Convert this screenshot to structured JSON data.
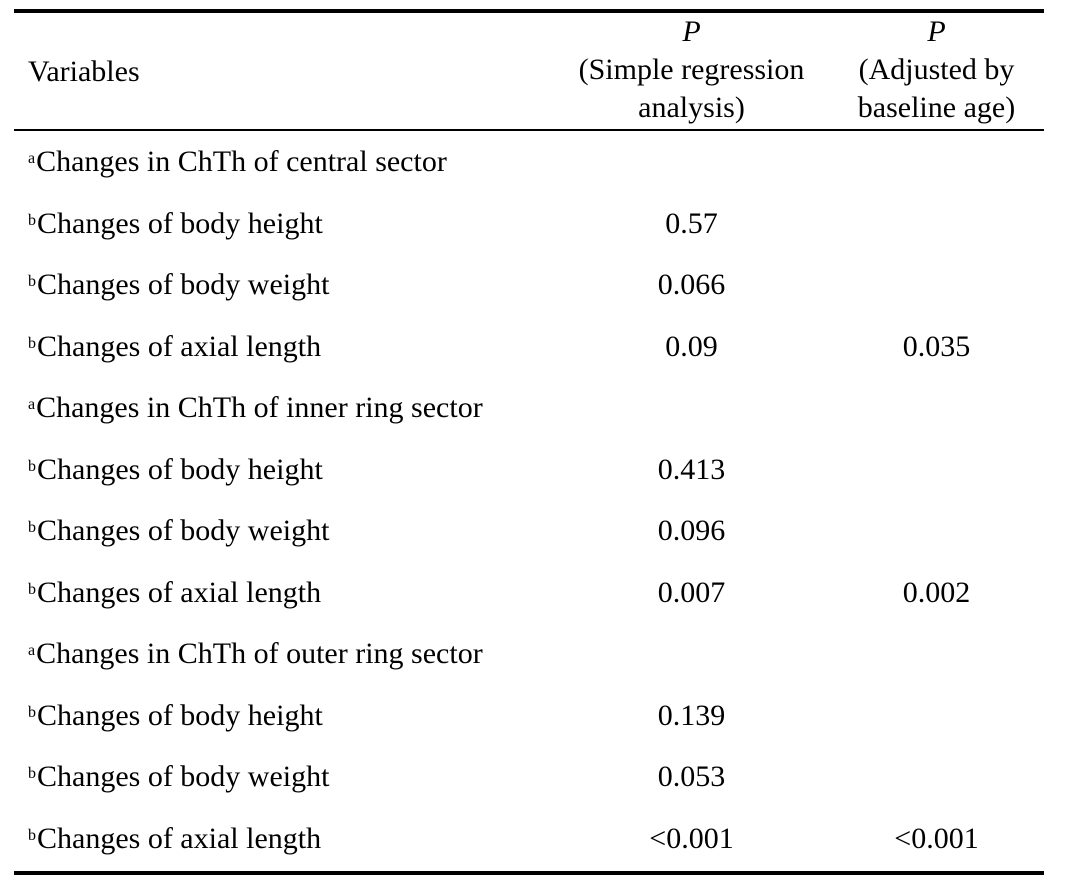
{
  "header": {
    "variables": "Variables",
    "col1": {
      "p": "P",
      "sub": "(Simple regression",
      "sub2": "analysis)"
    },
    "col2": {
      "p": "P",
      "sub": "(Adjusted by",
      "sub2": "baseline age)"
    }
  },
  "rows": [
    {
      "sup": "a",
      "label": "Changes in ChTh of central sector",
      "v1": "",
      "v2": ""
    },
    {
      "sup": "b",
      "label": "Changes of body height",
      "v1": "0.57",
      "v2": ""
    },
    {
      "sup": "b",
      "label": "Changes of body weight",
      "v1": "0.066",
      "v2": ""
    },
    {
      "sup": "b",
      "label": "Changes of axial length",
      "v1": "0.09",
      "v2": "0.035"
    },
    {
      "sup": "a",
      "label": "Changes in ChTh of inner ring sector",
      "v1": "",
      "v2": ""
    },
    {
      "sup": "b",
      "label": "Changes of body height",
      "v1": "0.413",
      "v2": ""
    },
    {
      "sup": "b",
      "label": "Changes of body weight",
      "v1": "0.096",
      "v2": ""
    },
    {
      "sup": "b",
      "label": "Changes of axial length",
      "v1": "0.007",
      "v2": "0.002"
    },
    {
      "sup": "a",
      "label": "Changes in ChTh of outer ring sector",
      "v1": "",
      "v2": ""
    },
    {
      "sup": "b",
      "label": "Changes of body height",
      "v1": "0.139",
      "v2": ""
    },
    {
      "sup": "b",
      "label": "Changes of body weight",
      "v1": "0.053",
      "v2": ""
    },
    {
      "sup": "b",
      "label": "Changes of axial length",
      "v1": "<0.001",
      "v2": "<0.001"
    }
  ]
}
